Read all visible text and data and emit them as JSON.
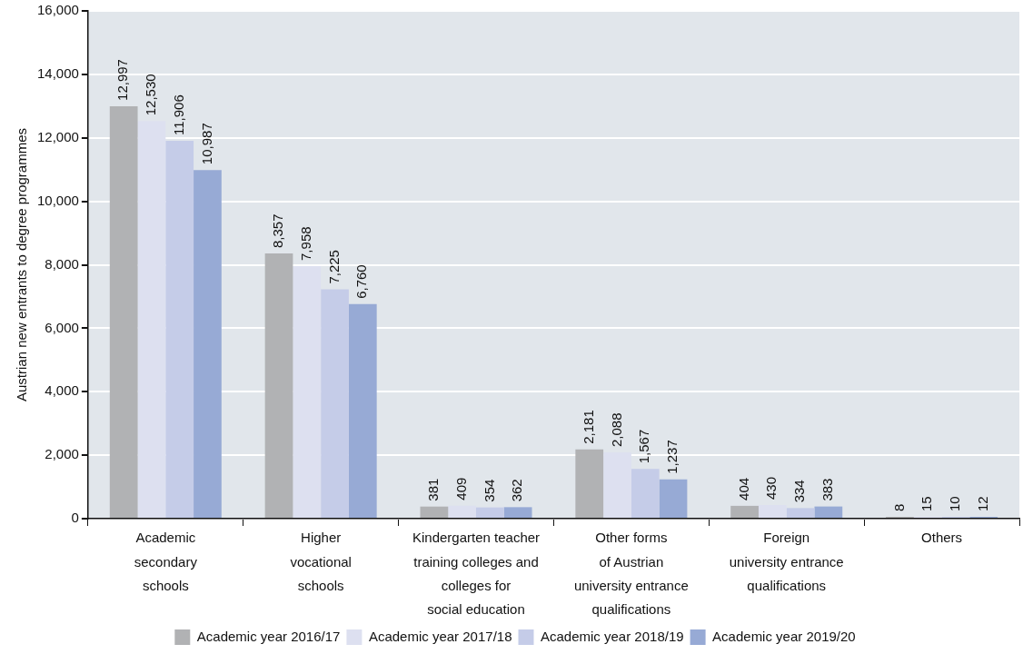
{
  "chart_data": {
    "type": "bar",
    "ylabel": "Austrian new entrants to degree programmes",
    "categories": [
      "Academic\nsecondary\nschools",
      "Higher\nvocational\nschools",
      "Kindergarten teacher\ntraining colleges and\ncolleges for\nsocial education",
      "Other forms\nof Austrian\nuniversity entrance\nqualifications",
      "Foreign\nuniversity entrance\nqualifications",
      "Others"
    ],
    "series": [
      {
        "name": "Academic year 2016/17",
        "color": "#b1b2b4",
        "values": [
          12997,
          8357,
          381,
          2181,
          404,
          8
        ],
        "value_labels": [
          "12,997",
          "8,357",
          "381",
          "2,181",
          "404",
          "8"
        ]
      },
      {
        "name": "Academic year 2017/18",
        "color": "#dde0f0",
        "values": [
          12530,
          7958,
          409,
          2088,
          430,
          15
        ],
        "value_labels": [
          "12,530",
          "7,958",
          "409",
          "2,088",
          "430",
          "15"
        ]
      },
      {
        "name": "Academic year 2018/19",
        "color": "#c5cce8",
        "values": [
          11906,
          7225,
          354,
          1567,
          334,
          10
        ],
        "value_labels": [
          "11,906",
          "7,225",
          "354",
          "1,567",
          "334",
          "10"
        ]
      },
      {
        "name": "Academic year 2019/20",
        "color": "#97aad5",
        "values": [
          10987,
          6760,
          362,
          1237,
          383,
          12
        ],
        "value_labels": [
          "10,987",
          "6,760",
          "362",
          "1,237",
          "383",
          "12"
        ]
      }
    ],
    "ylim": [
      0,
      16000
    ],
    "yticks": [
      {
        "value": 0,
        "label": "0"
      },
      {
        "value": 2000,
        "label": "2,000"
      },
      {
        "value": 4000,
        "label": "4,000"
      },
      {
        "value": 6000,
        "label": "6,000"
      },
      {
        "value": 8000,
        "label": "8,000"
      },
      {
        "value": 10000,
        "label": "10,000"
      },
      {
        "value": 12000,
        "label": "12,000"
      },
      {
        "value": 14000,
        "label": "14,000"
      },
      {
        "value": 16000,
        "label": "16,000"
      }
    ],
    "grid": "y",
    "legend": "bottom"
  }
}
